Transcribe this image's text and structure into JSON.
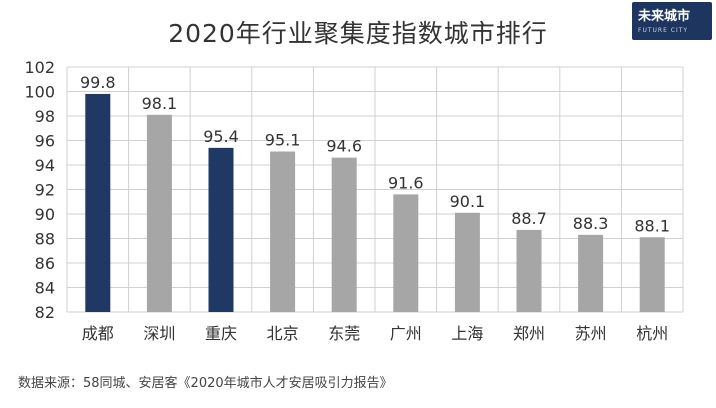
{
  "logo": {
    "text": "未来城市",
    "sub": "FUTURE CITY"
  },
  "source_text": "数据来源：58同城、安居客《2020年城市人才安居吸引力报告》",
  "chart_data": {
    "type": "bar",
    "title": "2020年行业聚集度指数城市排行",
    "categories": [
      "成都",
      "深圳",
      "重庆",
      "北京",
      "东莞",
      "广州",
      "上海",
      "郑州",
      "苏州",
      "杭州"
    ],
    "values": [
      99.8,
      98.1,
      95.4,
      95.1,
      94.6,
      91.6,
      90.1,
      88.7,
      88.3,
      88.1
    ],
    "value_labels": [
      "99.8",
      "98.1",
      "95.4",
      "95.1",
      "94.6",
      "91.6",
      "90.1",
      "88.7",
      "88.3",
      "88.1"
    ],
    "highlighted": [
      true,
      false,
      true,
      false,
      false,
      false,
      false,
      false,
      false,
      false
    ],
    "ylim": [
      82,
      102
    ],
    "yticks": [
      82,
      84,
      86,
      88,
      90,
      92,
      94,
      96,
      98,
      100,
      102
    ],
    "xlabel": "",
    "ylabel": "",
    "grid": true,
    "colors": {
      "highlight": "#1f3864",
      "normal": "#a6a6a6",
      "grid": "#d0d0d0"
    }
  }
}
